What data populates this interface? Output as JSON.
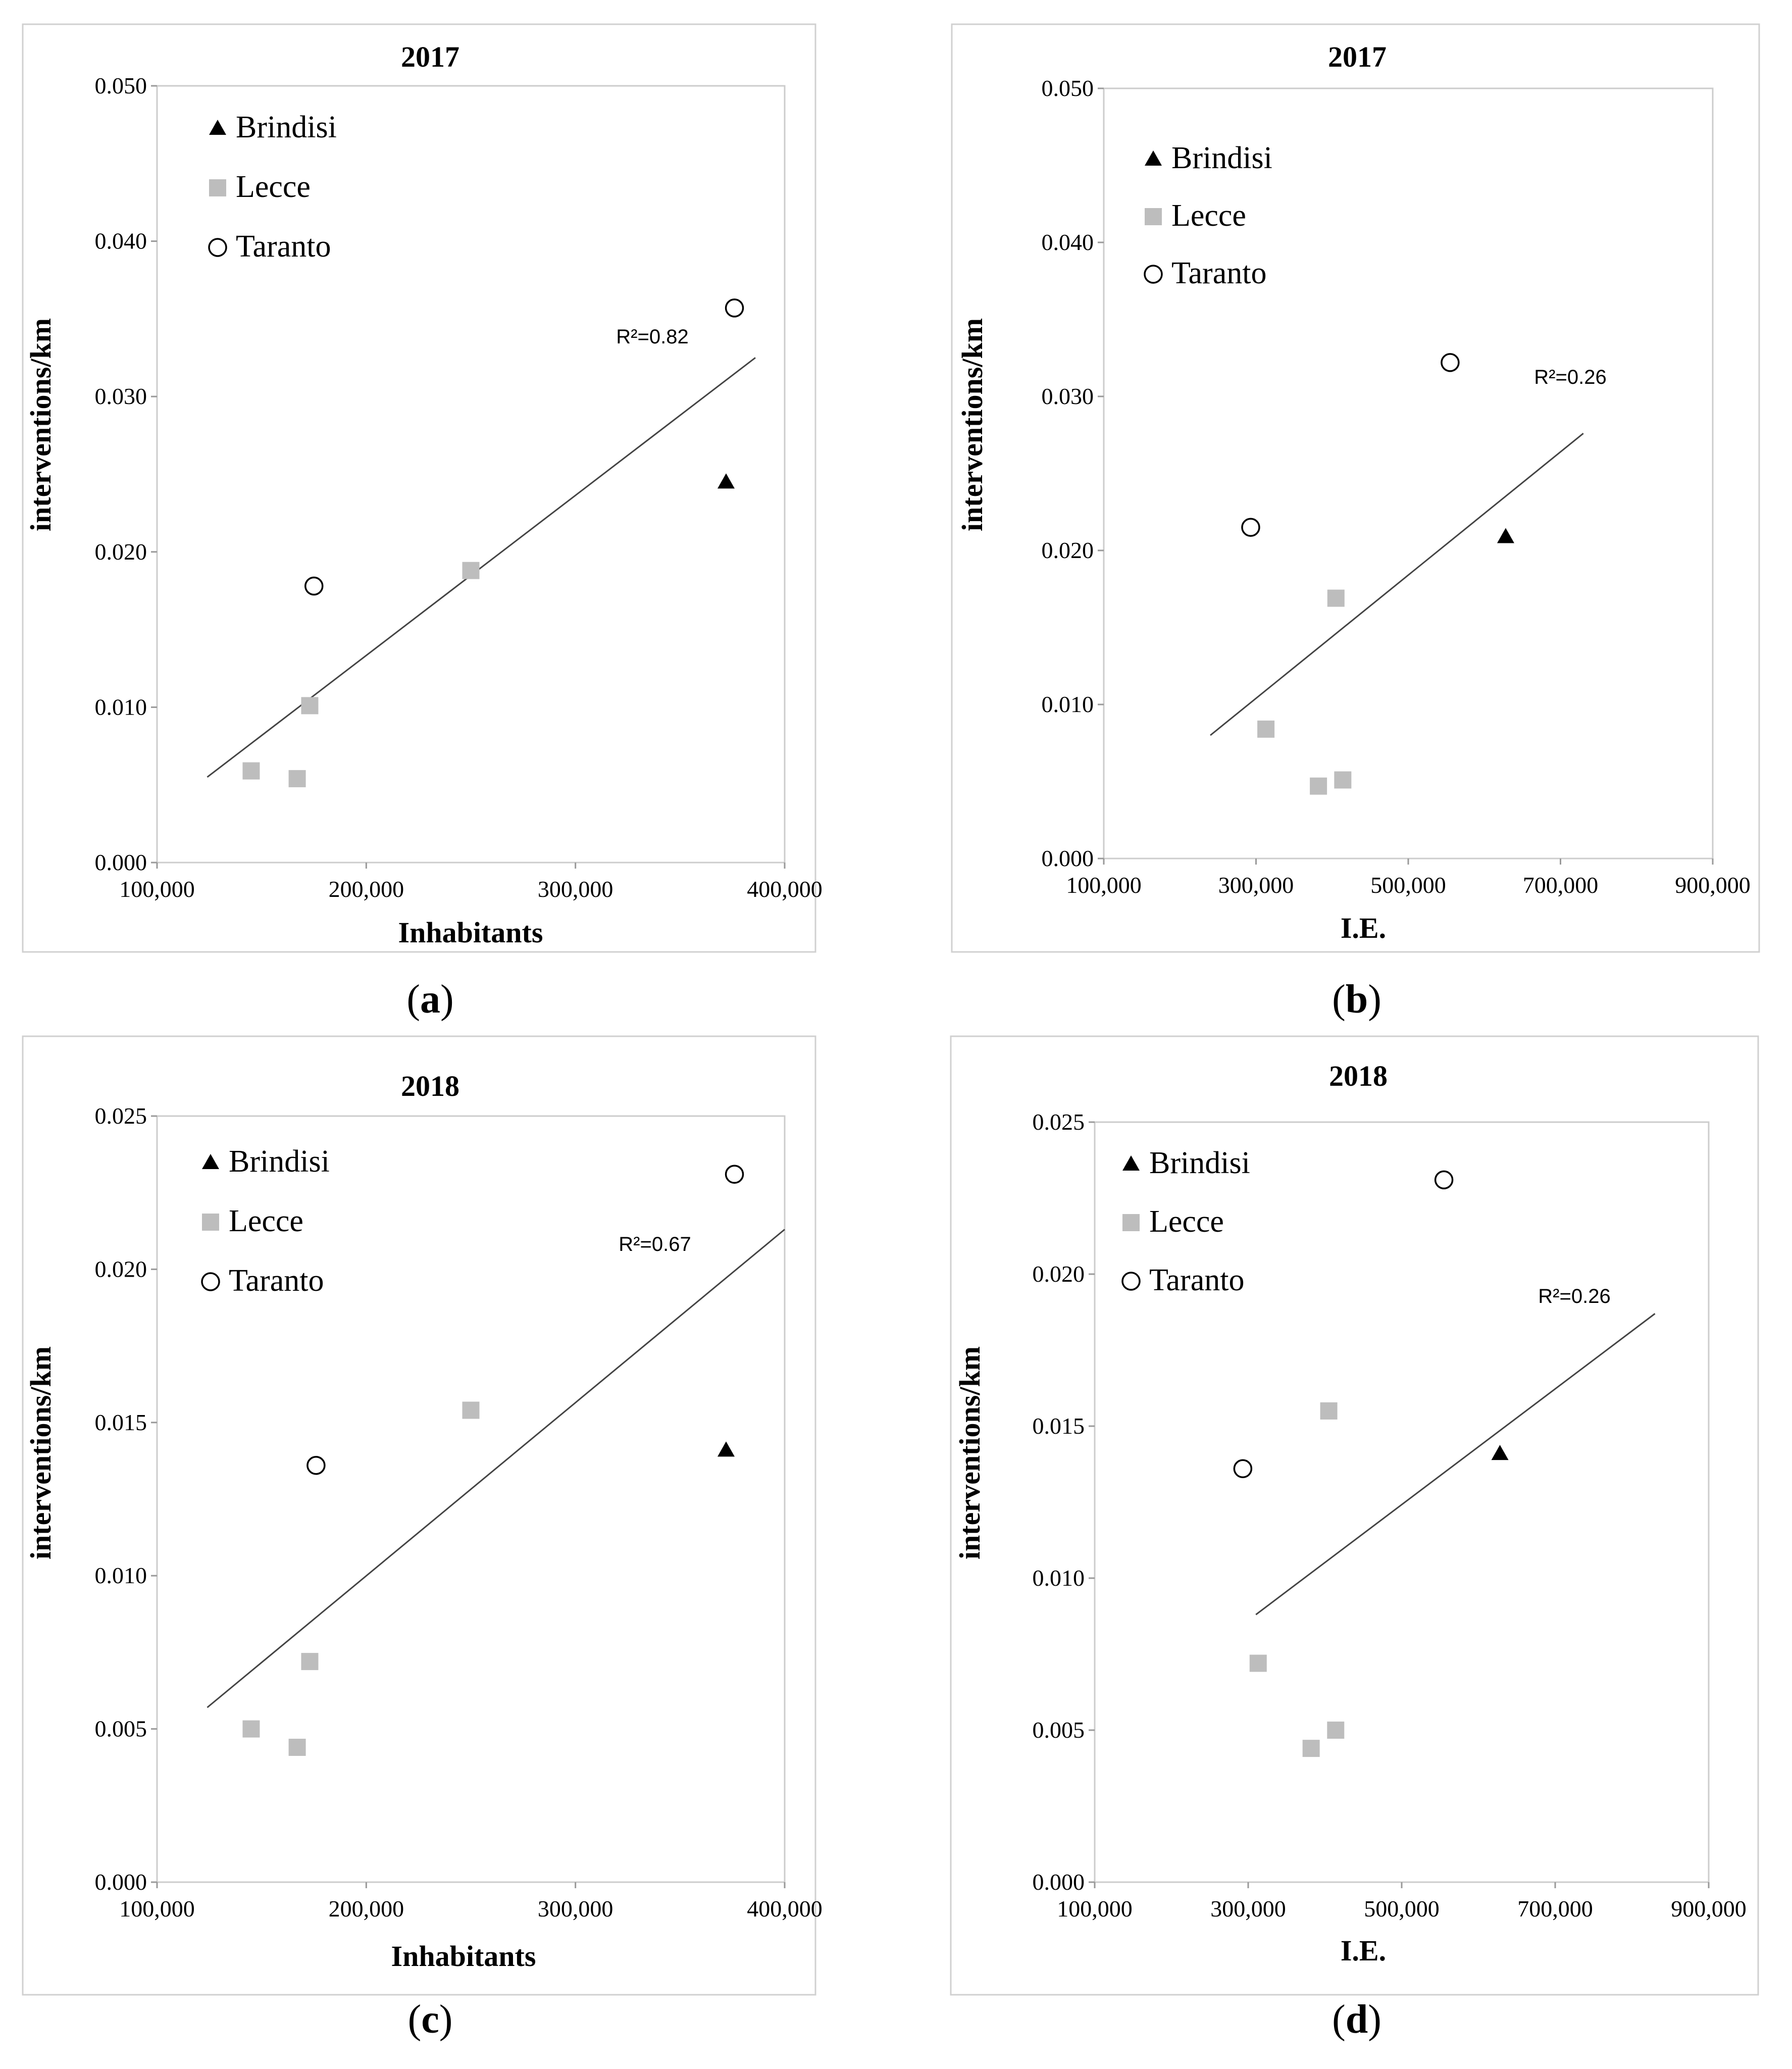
{
  "figure": {
    "panels": [
      {
        "caption_letter": "a"
      },
      {
        "caption_letter": "b"
      },
      {
        "caption_letter": "c"
      },
      {
        "caption_letter": "d"
      }
    ]
  },
  "chart_data": [
    {
      "type": "scatter",
      "panel": "a",
      "title": "2017",
      "xlabel": "Inhabitants",
      "ylabel": "interventions/km",
      "xlim": [
        100000,
        400000
      ],
      "ylim": [
        0,
        0.05
      ],
      "xticks": [
        "100,000",
        "200,000",
        "300,000",
        "400,000"
      ],
      "yticks": [
        "0.000",
        "0.010",
        "0.020",
        "0.030",
        "0.040",
        "0.050"
      ],
      "series": [
        {
          "name": "Brindisi",
          "marker": "triangle",
          "color": "#000000",
          "points": [
            [
              372000,
              0.0245
            ]
          ]
        },
        {
          "name": "Lecce",
          "marker": "square",
          "color": "#bdbdbd",
          "points": [
            [
              145000,
              0.0059
            ],
            [
              167000,
              0.0054
            ],
            [
              173000,
              0.0101
            ],
            [
              250000,
              0.0188
            ]
          ]
        },
        {
          "name": "Taranto",
          "marker": "circle-open",
          "color": "#000000",
          "points": [
            [
              175000,
              0.0178
            ],
            [
              376000,
              0.0357
            ]
          ]
        }
      ],
      "trendline": {
        "x": [
          124000,
          386000
        ],
        "y": [
          0.0055,
          0.0325
        ],
        "label": "R²=0.82"
      }
    },
    {
      "type": "scatter",
      "panel": "b",
      "title": "2017",
      "xlabel": "I.E.",
      "ylabel": "interventions/km",
      "xlim": [
        100000,
        900000
      ],
      "ylim": [
        0,
        0.05
      ],
      "xticks": [
        "100,000",
        "300,000",
        "500,000",
        "700,000",
        "900,000"
      ],
      "yticks": [
        "0.000",
        "0.010",
        "0.020",
        "0.030",
        "0.040",
        "0.050"
      ],
      "series": [
        {
          "name": "Brindisi",
          "marker": "triangle",
          "color": "#000000",
          "points": [
            [
              628000,
              0.0209
            ]
          ]
        },
        {
          "name": "Lecce",
          "marker": "square",
          "color": "#bdbdbd",
          "points": [
            [
              313000,
              0.0084
            ],
            [
              382000,
              0.0047
            ],
            [
              405000,
              0.0169
            ],
            [
              414000,
              0.0051
            ]
          ]
        },
        {
          "name": "Taranto",
          "marker": "circle-open",
          "color": "#000000",
          "points": [
            [
              293000,
              0.0215
            ],
            [
              555000,
              0.0322
            ]
          ]
        }
      ],
      "trendline": {
        "x": [
          240000,
          730000
        ],
        "y": [
          0.008,
          0.0276
        ],
        "label": "R²=0.26"
      }
    },
    {
      "type": "scatter",
      "panel": "c",
      "title": "2018",
      "xlabel": "Inhabitants",
      "ylabel": "interventions/km",
      "xlim": [
        100000,
        400000
      ],
      "ylim": [
        0,
        0.025
      ],
      "xticks": [
        "100,000",
        "200,000",
        "300,000",
        "400,000"
      ],
      "yticks": [
        "0.000",
        "0.005",
        "0.010",
        "0.015",
        "0.020",
        "0.025"
      ],
      "series": [
        {
          "name": "Brindisi",
          "marker": "triangle",
          "color": "#000000",
          "points": [
            [
              372000,
              0.0141
            ]
          ]
        },
        {
          "name": "Lecce",
          "marker": "square",
          "color": "#bdbdbd",
          "points": [
            [
              145000,
              0.005
            ],
            [
              167000,
              0.0044
            ],
            [
              173000,
              0.0072
            ],
            [
              250000,
              0.0154
            ]
          ]
        },
        {
          "name": "Taranto",
          "marker": "circle-open",
          "color": "#000000",
          "points": [
            [
              176000,
              0.0136
            ],
            [
              376000,
              0.0231
            ]
          ]
        }
      ],
      "trendline": {
        "x": [
          124000,
          400000
        ],
        "y": [
          0.0057,
          0.0213
        ],
        "label": "R²=0.67"
      }
    },
    {
      "type": "scatter",
      "panel": "d",
      "title": "2018",
      "xlabel": "I.E.",
      "ylabel": "interventions/km",
      "xlim": [
        100000,
        900000
      ],
      "ylim": [
        0,
        0.025
      ],
      "xticks": [
        "100,000",
        "300,000",
        "500,000",
        "700,000",
        "900,000"
      ],
      "yticks": [
        "0.000",
        "0.005",
        "0.010",
        "0.015",
        "0.020",
        "0.025"
      ],
      "series": [
        {
          "name": "Brindisi",
          "marker": "triangle",
          "color": "#000000",
          "points": [
            [
              628000,
              0.0141
            ]
          ]
        },
        {
          "name": "Lecce",
          "marker": "square",
          "color": "#bdbdbd",
          "points": [
            [
              313000,
              0.0072
            ],
            [
              382000,
              0.0044
            ],
            [
              405000,
              0.0155
            ],
            [
              414000,
              0.005
            ]
          ]
        },
        {
          "name": "Taranto",
          "marker": "circle-open",
          "color": "#000000",
          "points": [
            [
              293000,
              0.0136
            ],
            [
              555000,
              0.0231
            ]
          ]
        }
      ],
      "trendline": {
        "x": [
          310000,
          830000
        ],
        "y": [
          0.0088,
          0.0187
        ],
        "label": "R²=0.26"
      }
    }
  ]
}
